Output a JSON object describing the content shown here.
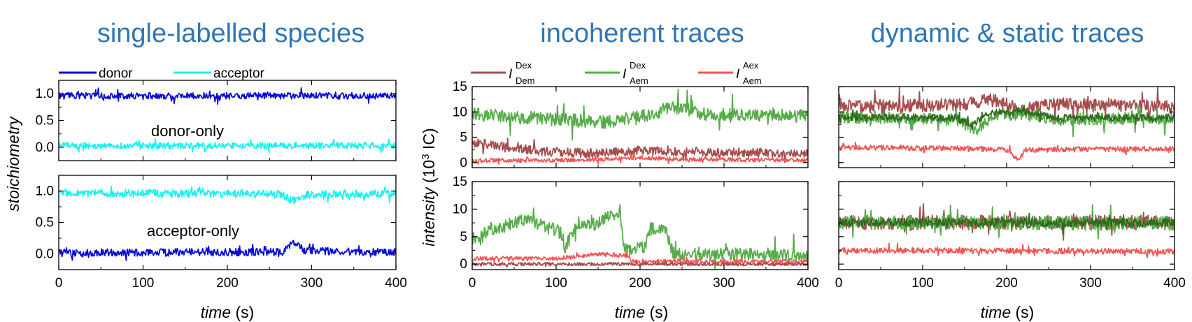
{
  "panel_titles": {
    "left": "single-labelled species",
    "middle": "incoherent traces",
    "right": "dynamic & static traces"
  },
  "axis_labels": {
    "stoichiometry": "stoichiometry",
    "intensity_main": "intensity",
    "intensity_unit_prefix": "(10",
    "intensity_unit_exp": "3",
    "intensity_unit_suffix": " IC)",
    "time": "time",
    "time_unit": " (s)"
  },
  "legend_left": [
    {
      "label": "donor",
      "color": "#0a0ad8"
    },
    {
      "label": "acceptor",
      "color": "#19f2f2"
    }
  ],
  "legend_middle": [
    {
      "main": "I",
      "sup": "Dex",
      "sub": "Dem",
      "color": "#a54d4d"
    },
    {
      "main": "I",
      "sup": "Dex",
      "sub": "Aem",
      "color": "#56ac49"
    },
    {
      "main": "I",
      "sup": "Aex",
      "sub": "Aem",
      "color": "#f25555"
    }
  ],
  "inner_labels": {
    "donor_only": "donor-only",
    "acceptor_only": "acceptor-only"
  },
  "ticks": {
    "stoich_y": [
      "0.0",
      "0.5",
      "1.0"
    ],
    "intensity_y": [
      "0",
      "5",
      "10",
      "15"
    ],
    "time_x": [
      "0",
      "100",
      "200",
      "300",
      "400"
    ]
  },
  "chart_data": [
    {
      "type": "line",
      "title": "single-labelled species",
      "subtitle": "donor-only",
      "xlabel": "time (s)",
      "ylabel": "stoichiometry",
      "xlim": [
        0,
        400
      ],
      "ylim": [
        -0.25,
        1.25
      ],
      "series": [
        {
          "name": "donor",
          "color": "#0a0ad8",
          "segments": [
            [
              0,
              0.96
            ],
            [
              400,
              0.96
            ]
          ],
          "noise": 0.06,
          "spikes": 0.12,
          "seed": 1
        },
        {
          "name": "acceptor",
          "color": "#19f2f2",
          "segments": [
            [
              0,
              0.03
            ],
            [
              400,
              0.03
            ]
          ],
          "noise": 0.06,
          "spikes": 0.14,
          "seed": 2
        }
      ]
    },
    {
      "type": "line",
      "subtitle": "acceptor-only",
      "xlabel": "time (s)",
      "ylabel": "stoichiometry",
      "xlim": [
        0,
        400
      ],
      "ylim": [
        -0.25,
        1.25
      ],
      "series": [
        {
          "name": "acceptor",
          "color": "#19f2f2",
          "segments": [
            [
              0,
              0.97
            ],
            [
              260,
              0.95
            ],
            [
              280,
              0.85
            ],
            [
              295,
              0.94
            ],
            [
              400,
              0.96
            ]
          ],
          "noise": 0.06,
          "spikes": 0.1,
          "seed": 3
        },
        {
          "name": "donor",
          "color": "#0a0ad8",
          "segments": [
            [
              0,
              0.02
            ],
            [
              265,
              0.03
            ],
            [
              278,
              0.18
            ],
            [
              292,
              0.05
            ],
            [
              400,
              0.03
            ]
          ],
          "noise": 0.06,
          "spikes": 0.12,
          "seed": 4
        }
      ]
    },
    {
      "type": "line",
      "title": "incoherent traces",
      "xlabel": "time (s)",
      "ylabel": "intensity (10^3 IC)",
      "xlim": [
        0,
        400
      ],
      "ylim": [
        -1,
        15
      ],
      "series": [
        {
          "name": "I Dex Aem",
          "color": "#56ac49",
          "segments": [
            [
              0,
              9.5
            ],
            [
              100,
              8.5
            ],
            [
              160,
              8.0
            ],
            [
              200,
              9.0
            ],
            [
              240,
              11.0
            ],
            [
              280,
              9.5
            ],
            [
              400,
              9.2
            ]
          ],
          "noise": 1.3,
          "spikes": 3.5,
          "seed": 5
        },
        {
          "name": "I Dex Dem",
          "color": "#a54d4d",
          "segments": [
            [
              0,
              4.0
            ],
            [
              40,
              3.2
            ],
            [
              80,
              2.2
            ],
            [
              150,
              1.8
            ],
            [
              200,
              2.3
            ],
            [
              400,
              1.8
            ]
          ],
          "noise": 0.9,
          "spikes": 1.5,
          "seed": 6
        },
        {
          "name": "I Aex Aem",
          "color": "#f25555",
          "segments": [
            [
              0,
              0.4
            ],
            [
              150,
              0.5
            ],
            [
              200,
              1.0
            ],
            [
              250,
              0.6
            ],
            [
              400,
              0.5
            ]
          ],
          "noise": 0.4,
          "spikes": 0.6,
          "seed": 7
        }
      ]
    },
    {
      "type": "line",
      "xlabel": "time (s)",
      "ylabel": "intensity (10^3 IC)",
      "xlim": [
        0,
        400
      ],
      "ylim": [
        -1,
        15
      ],
      "series": [
        {
          "name": "I Dex Aem",
          "color": "#56ac49",
          "segments": [
            [
              0,
              4.5
            ],
            [
              20,
              6.0
            ],
            [
              60,
              8.0
            ],
            [
              105,
              6.0
            ],
            [
              112,
              2.5
            ],
            [
              118,
              6.0
            ],
            [
              150,
              7.5
            ],
            [
              175,
              9.5
            ],
            [
              182,
              2.5
            ],
            [
              205,
              3.0
            ],
            [
              212,
              6.5
            ],
            [
              232,
              6.0
            ],
            [
              238,
              2.0
            ],
            [
              400,
              1.6
            ]
          ],
          "noise": 1.2,
          "spikes": 3.0,
          "seed": 8
        },
        {
          "name": "I Aex Aem",
          "color": "#f25555",
          "segments": [
            [
              0,
              1.0
            ],
            [
              100,
              1.0
            ],
            [
              150,
              1.8
            ],
            [
              185,
              1.5
            ],
            [
              190,
              0.5
            ],
            [
              400,
              0.4
            ]
          ],
          "noise": 0.4,
          "spikes": 0.5,
          "seed": 9
        },
        {
          "name": "I Dex Dem",
          "color": "#a54d4d",
          "segments": [
            [
              0,
              0.0
            ],
            [
              400,
              0.0
            ]
          ],
          "noise": 0.3,
          "spikes": 0.3,
          "seed": 10
        }
      ]
    },
    {
      "type": "line",
      "title": "dynamic & static traces",
      "xlabel": "time (s)",
      "xlim": [
        0,
        400
      ],
      "ylim": [
        -1,
        15
      ],
      "series": [
        {
          "name": "I Dex Dem",
          "color": "#a54d4d",
          "segments": [
            [
              0,
              11.0
            ],
            [
              150,
              11.5
            ],
            [
              180,
              12.5
            ],
            [
              220,
              10.5
            ],
            [
              260,
              11.5
            ],
            [
              400,
              11.0
            ]
          ],
          "noise": 1.3,
          "spikes": 3.0,
          "seed": 11
        },
        {
          "name": "I Dex Aem",
          "color": "#56ac49",
          "segments": [
            [
              0,
              9.0
            ],
            [
              140,
              8.5
            ],
            [
              165,
              6.5
            ],
            [
              185,
              9.5
            ],
            [
              220,
              9.5
            ],
            [
              260,
              8.5
            ],
            [
              400,
              8.7
            ]
          ],
          "noise": 1.2,
          "spikes": 2.8,
          "seed": 12
        },
        {
          "name": "I Dex Aem (dark)",
          "color": "#2f6b1f",
          "segments": [
            [
              0,
              9.0
            ],
            [
              140,
              8.8
            ],
            [
              160,
              7.5
            ],
            [
              180,
              9.8
            ],
            [
              220,
              10.0
            ],
            [
              260,
              8.8
            ],
            [
              400,
              8.9
            ]
          ],
          "noise": 0.7,
          "spikes": 1.5,
          "seed": 13
        },
        {
          "name": "I Aex Aem",
          "color": "#f25555",
          "segments": [
            [
              0,
              3.0
            ],
            [
              150,
              2.8
            ],
            [
              200,
              2.5
            ],
            [
              215,
              0.5
            ],
            [
              222,
              2.5
            ],
            [
              400,
              2.8
            ]
          ],
          "noise": 0.5,
          "spikes": 1.0,
          "seed": 14
        }
      ]
    },
    {
      "type": "line",
      "xlabel": "time (s)",
      "xlim": [
        0,
        400
      ],
      "ylim": [
        -1,
        15
      ],
      "series": [
        {
          "name": "I Dex Dem",
          "color": "#a54d4d",
          "segments": [
            [
              0,
              7.6
            ],
            [
              400,
              7.6
            ]
          ],
          "noise": 1.3,
          "spikes": 2.5,
          "seed": 15
        },
        {
          "name": "I Dex Aem",
          "color": "#56ac49",
          "segments": [
            [
              0,
              7.6
            ],
            [
              400,
              7.4
            ]
          ],
          "noise": 1.3,
          "spikes": 2.5,
          "seed": 16
        },
        {
          "name": "I Dex Aem (dark)",
          "color": "#2f6b1f",
          "segments": [
            [
              0,
              7.6
            ],
            [
              400,
              7.5
            ]
          ],
          "noise": 0.8,
          "spikes": 1.5,
          "seed": 17
        },
        {
          "name": "I Aex Aem",
          "color": "#f25555",
          "segments": [
            [
              0,
              2.5
            ],
            [
              400,
              2.3
            ]
          ],
          "noise": 0.5,
          "spikes": 1.0,
          "seed": 18
        }
      ]
    }
  ]
}
